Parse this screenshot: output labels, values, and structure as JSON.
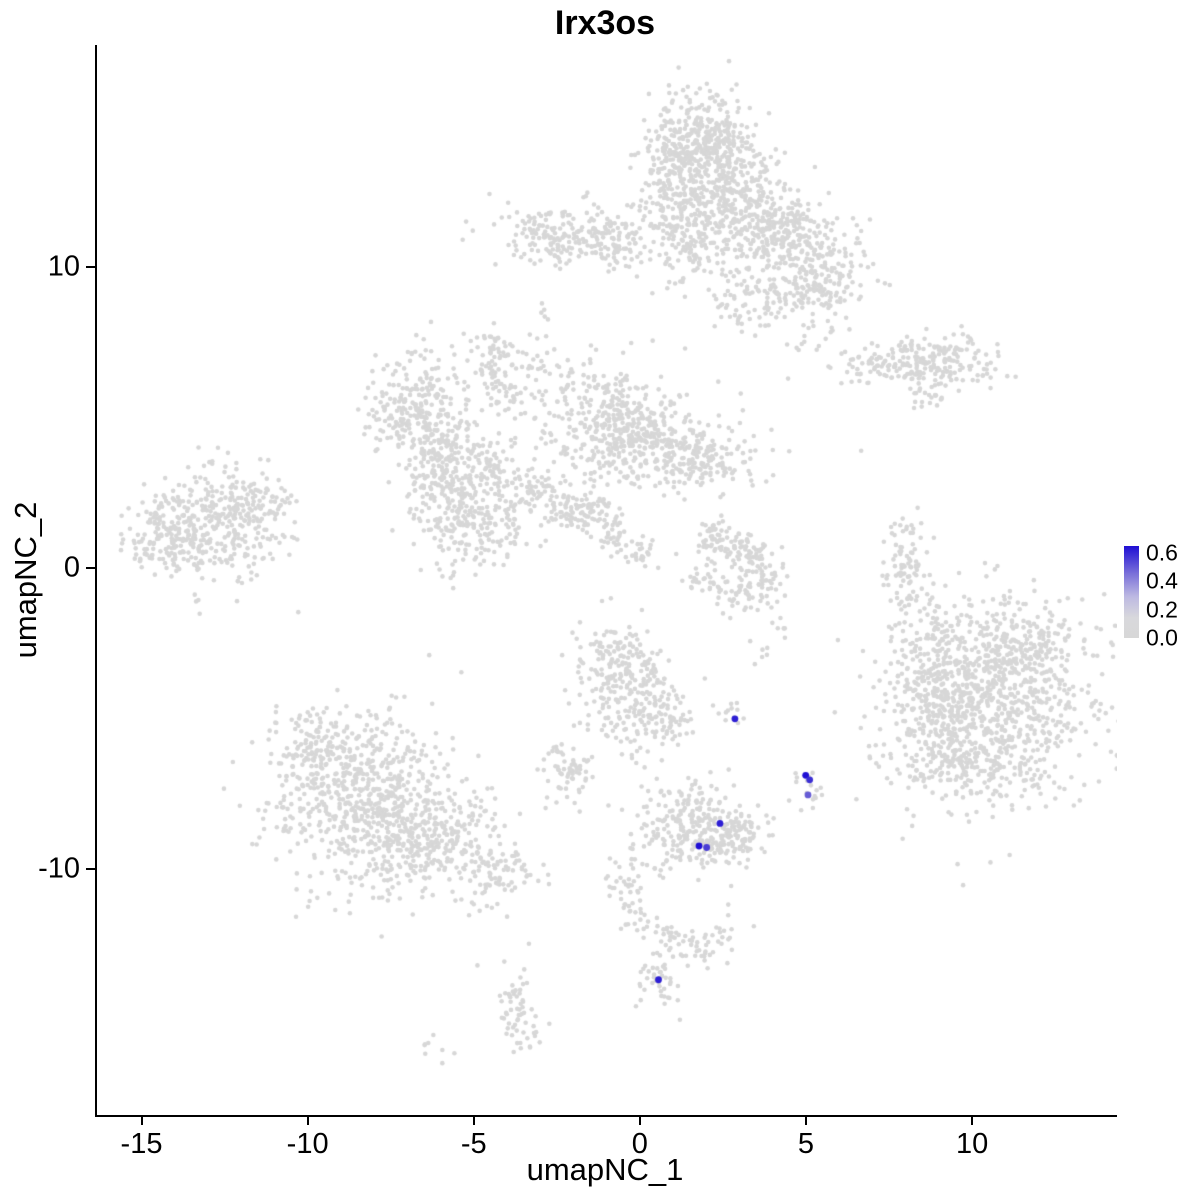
{
  "chart_data": {
    "type": "scatter",
    "title": "Irx3os",
    "xlabel": "umapNC_1",
    "ylabel": "umapNC_2",
    "xlim": [
      -16.4,
      14.3
    ],
    "ylim": [
      -18.2,
      17.4
    ],
    "grid": false,
    "legend_position": "right",
    "x_ticks": [
      {
        "value": -15,
        "label": "-15"
      },
      {
        "value": -10,
        "label": "-10"
      },
      {
        "value": -5,
        "label": "-5"
      },
      {
        "value": 0,
        "label": "0"
      },
      {
        "value": 5,
        "label": "5"
      },
      {
        "value": 10,
        "label": "10"
      }
    ],
    "y_ticks": [
      {
        "value": 10,
        "label": "10"
      },
      {
        "value": 0,
        "label": "0"
      },
      {
        "value": -10,
        "label": "-10"
      }
    ],
    "point_color_low": "#d7d7d7",
    "point_color_high": "#1f0fd4",
    "value_min": 0.0,
    "value_max": 0.65,
    "point_radius": 2.3,
    "expressing_point_radius": 3.4,
    "seed": 42,
    "background_clusters": [
      [
        1.6,
        13.4,
        0.9,
        1.2,
        420
      ],
      [
        2.2,
        14.3,
        0.6,
        0.5,
        120
      ],
      [
        0.9,
        13.6,
        0.5,
        0.8,
        90
      ],
      [
        3.1,
        11.8,
        0.8,
        1.0,
        260
      ],
      [
        4.5,
        11.1,
        0.9,
        0.65,
        200
      ],
      [
        5.1,
        9.3,
        0.8,
        0.8,
        210
      ],
      [
        1.2,
        10.9,
        0.45,
        0.8,
        110
      ],
      [
        3.0,
        8.8,
        0.45,
        0.45,
        50
      ],
      [
        -2.4,
        11.1,
        1.05,
        0.5,
        190
      ],
      [
        -0.7,
        10.8,
        0.45,
        0.4,
        70
      ],
      [
        -3.0,
        8.6,
        0.15,
        0.15,
        5
      ],
      [
        7.8,
        6.8,
        1.0,
        0.4,
        150
      ],
      [
        9.4,
        6.9,
        0.65,
        0.4,
        90
      ],
      [
        8.6,
        5.6,
        0.3,
        0.25,
        18
      ],
      [
        -4.5,
        7.2,
        0.4,
        0.35,
        55
      ],
      [
        -6.8,
        5.3,
        0.8,
        0.95,
        260
      ],
      [
        -6.1,
        3.3,
        0.6,
        0.85,
        190
      ],
      [
        -5.0,
        1.6,
        0.8,
        0.85,
        230
      ],
      [
        -4.5,
        3.6,
        0.45,
        0.45,
        60
      ],
      [
        -3.3,
        2.6,
        0.45,
        0.45,
        60
      ],
      [
        -2.3,
        1.8,
        0.4,
        0.4,
        50
      ],
      [
        -1.2,
        4.9,
        0.95,
        1.0,
        320
      ],
      [
        0.3,
        4.1,
        0.75,
        0.7,
        210
      ],
      [
        1.9,
        3.8,
        0.75,
        0.6,
        150
      ],
      [
        -1.5,
        1.9,
        0.35,
        0.3,
        45
      ],
      [
        -0.8,
        1.1,
        0.3,
        0.3,
        35
      ],
      [
        0.0,
        0.4,
        0.3,
        0.3,
        25
      ],
      [
        -3.0,
        6.9,
        0.5,
        0.4,
        30
      ],
      [
        -4.2,
        5.9,
        0.4,
        0.4,
        40
      ],
      [
        -13.1,
        1.3,
        1.15,
        0.95,
        360
      ],
      [
        -11.6,
        2.3,
        0.55,
        0.45,
        80
      ],
      [
        -14.3,
        0.7,
        0.5,
        0.6,
        70
      ],
      [
        8.0,
        -0.1,
        0.35,
        1.0,
        90
      ],
      [
        2.2,
        0.9,
        0.35,
        0.35,
        50
      ],
      [
        3.1,
        0.6,
        0.4,
        0.35,
        60
      ],
      [
        3.7,
        -0.3,
        0.35,
        0.4,
        50
      ],
      [
        2.8,
        -0.9,
        0.35,
        0.3,
        35
      ],
      [
        1.9,
        -0.5,
        0.3,
        0.3,
        25
      ],
      [
        3.9,
        -2.0,
        0.3,
        0.4,
        12
      ],
      [
        10.5,
        -4.4,
        1.6,
        1.8,
        950
      ],
      [
        8.7,
        -4.2,
        0.6,
        1.2,
        160
      ],
      [
        9.6,
        -6.6,
        0.8,
        0.5,
        110
      ],
      [
        11.5,
        -2.5,
        0.8,
        0.5,
        120
      ],
      [
        -0.5,
        -4.1,
        0.75,
        1.0,
        230
      ],
      [
        -0.8,
        -2.9,
        0.45,
        0.4,
        60
      ],
      [
        0.7,
        -5.1,
        0.4,
        0.4,
        50
      ],
      [
        1.5,
        -8.7,
        0.9,
        0.7,
        260
      ],
      [
        2.8,
        -8.9,
        0.5,
        0.4,
        80
      ],
      [
        -8.2,
        -7.7,
        1.35,
        1.5,
        720
      ],
      [
        -6.1,
        -9.1,
        0.9,
        0.7,
        200
      ],
      [
        -4.3,
        -10.1,
        0.6,
        0.4,
        70
      ],
      [
        -9.9,
        -6.2,
        0.6,
        0.8,
        120
      ],
      [
        -4.8,
        -11.3,
        0.3,
        0.3,
        8
      ],
      [
        -2.3,
        -6.9,
        0.4,
        0.5,
        55
      ],
      [
        -2.6,
        -5.9,
        0.15,
        0.15,
        5
      ],
      [
        -0.5,
        -10.4,
        0.3,
        0.4,
        30
      ],
      [
        -0.2,
        -11.6,
        0.25,
        0.35,
        22
      ],
      [
        0.6,
        -12.4,
        0.3,
        0.3,
        22
      ],
      [
        1.6,
        -12.6,
        0.5,
        0.3,
        30
      ],
      [
        2.4,
        -12.2,
        0.3,
        0.3,
        15
      ],
      [
        0.6,
        -13.9,
        0.4,
        0.4,
        40
      ],
      [
        -3.8,
        -14.7,
        0.3,
        0.7,
        50
      ],
      [
        -3.4,
        -15.8,
        0.3,
        0.3,
        12
      ],
      [
        -6.3,
        -15.9,
        0.25,
        0.2,
        8
      ],
      [
        5.0,
        -7.2,
        0.3,
        0.4,
        18
      ],
      [
        2.6,
        -4.9,
        0.3,
        0.2,
        12
      ]
    ],
    "extra_points": [
      [
        5.9,
        -2.4
      ],
      [
        3.4,
        -3.2
      ],
      [
        6.6,
        3.9
      ],
      [
        3.9,
        4.6
      ],
      [
        -1.2,
        -1.1
      ],
      [
        0.0,
        -1.4
      ],
      [
        -2.4,
        -2.9
      ],
      [
        2.3,
        6.2
      ],
      [
        6.1,
        8.9
      ],
      [
        4.4,
        6.3
      ],
      [
        -6.4,
        -2.9
      ],
      [
        -0.6,
        -6.2
      ],
      [
        0.6,
        -6.4
      ],
      [
        2.6,
        -11.2
      ],
      [
        8.3,
        2.0
      ],
      [
        -11.0,
        -4.6
      ],
      [
        1.3,
        7.3
      ],
      [
        -3.4,
        -12.5
      ]
    ],
    "expressing_points": [
      [
        2.8,
        -5.02,
        0.6
      ],
      [
        4.93,
        -6.9,
        0.65
      ],
      [
        5.05,
        -7.05,
        0.55
      ],
      [
        5.0,
        -7.55,
        0.4
      ],
      [
        2.35,
        -8.5,
        0.6
      ],
      [
        1.72,
        -9.25,
        0.65
      ],
      [
        1.95,
        -9.3,
        0.5
      ],
      [
        0.5,
        -13.7,
        0.6
      ]
    ],
    "legend": {
      "labels": [
        "0.6",
        "0.4",
        "0.2",
        "0.0"
      ],
      "values": [
        0.6,
        0.4,
        0.2,
        0.0
      ],
      "gradient_stops": [
        {
          "pos": 0,
          "color": "#1f0fd4"
        },
        {
          "pos": 0.3,
          "color": "#7a70d9"
        },
        {
          "pos": 0.55,
          "color": "#bdb9e2"
        },
        {
          "pos": 0.78,
          "color": "#d8d8dc"
        },
        {
          "pos": 1,
          "color": "#d7d7d7"
        }
      ]
    }
  }
}
